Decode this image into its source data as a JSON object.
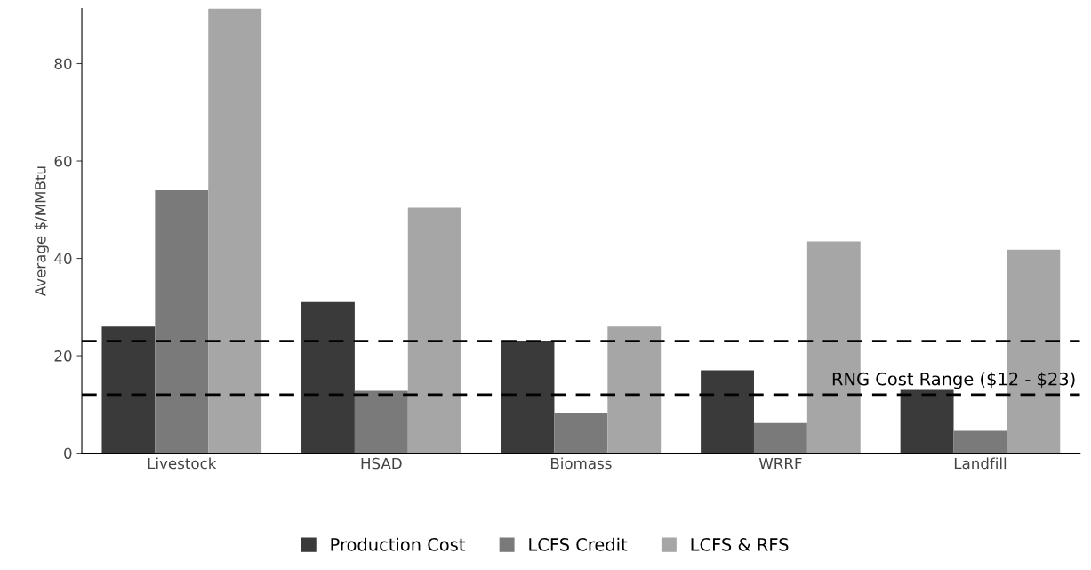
{
  "chart_data": {
    "type": "bar",
    "ylabel": "Average $/MMBtu",
    "categories": [
      "Livestock",
      "HSAD",
      "Biomass",
      "WRRF",
      "Landfill"
    ],
    "series": [
      {
        "name": "Production Cost",
        "color": "#3a3a3a",
        "values": [
          26,
          31,
          23,
          17,
          13
        ]
      },
      {
        "name": "LCFS Credit",
        "color": "#7a7a7a",
        "values": [
          54,
          12.8,
          8.2,
          6.2,
          4.6
        ]
      },
      {
        "name": "LCFS & RFS",
        "color": "#a6a6a6",
        "values": [
          91.3,
          50.4,
          26,
          43.5,
          41.8
        ]
      }
    ],
    "ylim": [
      0,
      91.3
    ],
    "yticks": [
      0,
      20,
      40,
      60,
      80
    ],
    "ref_lines": [
      {
        "axis": "y",
        "value": 23,
        "color": "#000000",
        "line_style": "dashed"
      },
      {
        "axis": "y",
        "value": 12,
        "color": "#000000",
        "line_style": "dashed",
        "label": "RNG Cost Range ($12 - $23)"
      }
    ],
    "grid": false,
    "legend": "bottom"
  }
}
